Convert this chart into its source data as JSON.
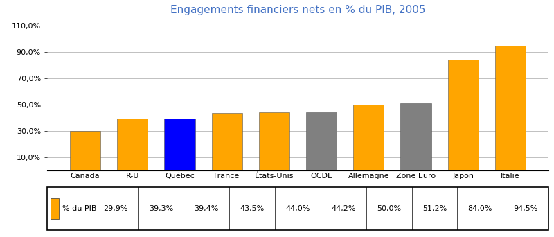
{
  "title": "Engagements financiers nets en % du PIB, 2005",
  "categories": [
    "Canada",
    "R-U",
    "Québec",
    "France",
    "États-Unis",
    "OCDE",
    "Allemagne",
    "Zone Euro",
    "Japon",
    "Italie"
  ],
  "values": [
    29.9,
    39.3,
    39.4,
    43.5,
    44.0,
    44.2,
    50.0,
    51.2,
    84.0,
    94.5
  ],
  "colors": [
    "#FFA500",
    "#FFA500",
    "#0000FF",
    "#FFA500",
    "#FFA500",
    "#808080",
    "#FFA500",
    "#808080",
    "#FFA500",
    "#FFA500"
  ],
  "legend_label": "% du PIB",
  "legend_patch_color": "#FFA500",
  "ytick_values": [
    10.0,
    30.0,
    50.0,
    70.0,
    90.0,
    110.0
  ],
  "ytick_labels": [
    "10,0%",
    "30,0%",
    "50,0%",
    "70,0%",
    "90,0%",
    "110,0%"
  ],
  "ylim_max": 115,
  "table_values": [
    "29,9%",
    "39,3%",
    "39,4%",
    "43,5%",
    "44,0%",
    "44,2%",
    "50,0%",
    "51,2%",
    "84,0%",
    "94,5%"
  ],
  "bg_color": "#FFFFFF",
  "grid_color": "#C0C0C0",
  "title_color": "#4472C4",
  "bar_edge_color": "#555555",
  "title_fontsize": 11,
  "tick_fontsize": 8,
  "table_fontsize": 8
}
